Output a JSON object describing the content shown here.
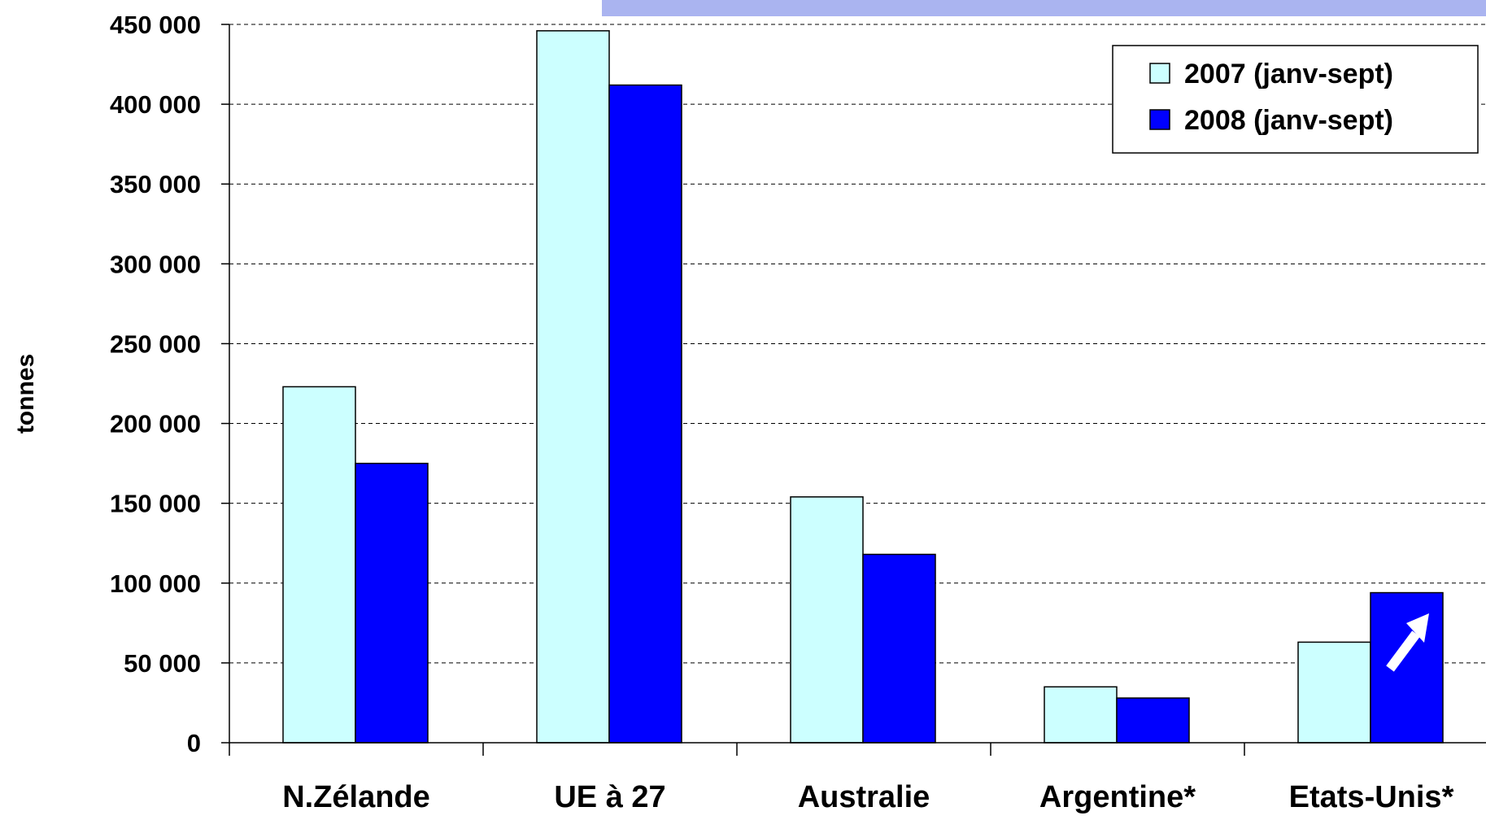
{
  "chart_data": {
    "type": "bar",
    "title": "",
    "xlabel": "",
    "ylabel": "tonnes",
    "categories": [
      "N.Zélande",
      "UE à 27",
      "Australie",
      "Argentine*",
      "Etats-Unis*"
    ],
    "series": [
      {
        "name": "2007 (janv-sept)",
        "color": "#ccffff",
        "values": [
          223000,
          446000,
          154000,
          35000,
          63000
        ]
      },
      {
        "name": "2008 (janv-sept)",
        "color": "#0000ff",
        "values": [
          175000,
          412000,
          118000,
          28000,
          94000
        ]
      }
    ],
    "ylim": [
      0,
      450000
    ],
    "yticks": [
      0,
      50000,
      100000,
      150000,
      200000,
      250000,
      300000,
      350000,
      400000,
      450000
    ],
    "ytick_labels": [
      "0",
      "50 000",
      "100 000",
      "150 000",
      "200 000",
      "250 000",
      "300 000",
      "350 000",
      "400 000",
      "450 000"
    ],
    "grid": "horizontal-dashed",
    "legend_position": "top-right",
    "annotation": {
      "type": "arrow-up",
      "category": "Etats-Unis*",
      "series": "2008 (janv-sept)",
      "color": "#ffffff"
    },
    "title_banner_color": "#aab4f0"
  }
}
